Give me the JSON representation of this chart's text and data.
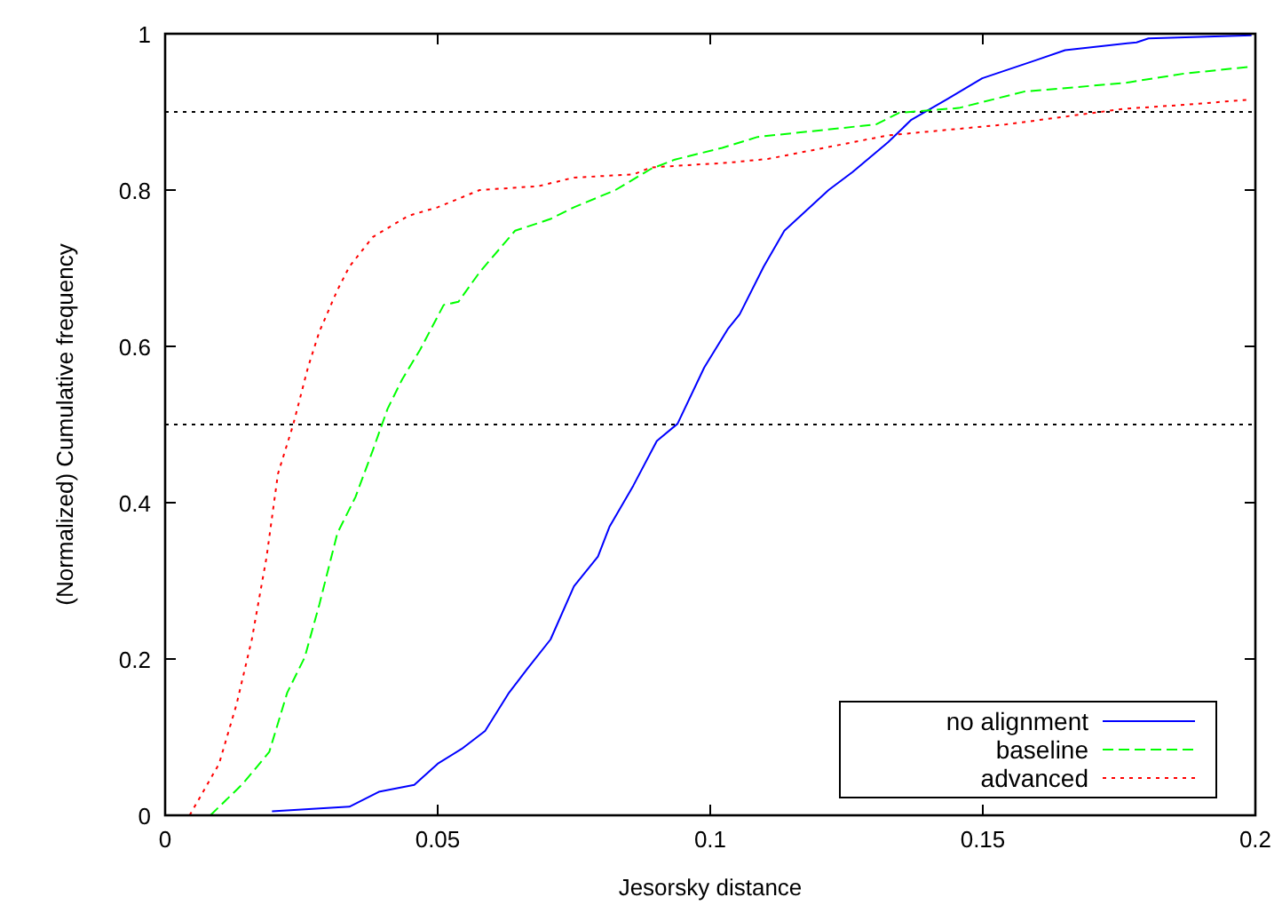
{
  "chart_data": {
    "type": "line",
    "xlabel": "Jesorsky distance",
    "ylabel": "(Normalized) Cumulative frequency",
    "xlim": [
      0,
      0.2
    ],
    "xticks": [
      0,
      0.05,
      0.1,
      0.15,
      0.2
    ],
    "ylim": [
      0,
      1
    ],
    "yticks": [
      0,
      0.2,
      0.4,
      0.6,
      0.8,
      1
    ],
    "grid": false,
    "legend": "bottom right",
    "marker": "none",
    "ref_lines": [
      {
        "axis": "y",
        "value": 0.5,
        "color": "#000000",
        "line_style": "dotted"
      },
      {
        "axis": "y",
        "value": 0.9,
        "color": "#000000",
        "line_style": "dotted"
      }
    ],
    "series": [
      {
        "name": "no alignment",
        "color": "#0000ff",
        "line_style": "solid",
        "x": [
          0.0196,
          0.0338,
          0.0392,
          0.0457,
          0.05,
          0.0544,
          0.0587,
          0.0631,
          0.0664,
          0.0707,
          0.075,
          0.0794,
          0.0815,
          0.0859,
          0.0902,
          0.094,
          0.0989,
          0.1033,
          0.1054,
          0.1098,
          0.1136,
          0.1217,
          0.1261,
          0.1326,
          0.1369,
          0.1434,
          0.1499,
          0.1597,
          0.1651,
          0.1782,
          0.1804,
          0.1993
        ],
        "values": [
          0.005,
          0.011,
          0.03,
          0.039,
          0.066,
          0.085,
          0.108,
          0.157,
          0.187,
          0.225,
          0.293,
          0.331,
          0.369,
          0.422,
          0.479,
          0.501,
          0.573,
          0.623,
          0.641,
          0.702,
          0.748,
          0.8,
          0.823,
          0.861,
          0.89,
          0.916,
          0.943,
          0.966,
          0.979,
          0.989,
          0.994,
          0.998
        ]
      },
      {
        "name": "baseline",
        "color": "#00ff00",
        "line_style": "dashed",
        "x": [
          0.0083,
          0.0142,
          0.0191,
          0.0224,
          0.0256,
          0.0283,
          0.0316,
          0.0349,
          0.0381,
          0.0408,
          0.0435,
          0.0468,
          0.0511,
          0.0538,
          0.0577,
          0.0642,
          0.0707,
          0.075,
          0.0826,
          0.0891,
          0.0935,
          0.1022,
          0.1087,
          0.1304,
          0.1347,
          0.1456,
          0.1576,
          0.176,
          0.1869,
          0.1993
        ],
        "values": [
          0,
          0.04,
          0.081,
          0.157,
          0.202,
          0.27,
          0.361,
          0.407,
          0.467,
          0.52,
          0.558,
          0.596,
          0.653,
          0.657,
          0.695,
          0.748,
          0.763,
          0.778,
          0.8,
          0.827,
          0.839,
          0.854,
          0.868,
          0.884,
          0.899,
          0.905,
          0.926,
          0.937,
          0.949,
          0.958
        ]
      },
      {
        "name": "advanced",
        "color": "#ff0000",
        "line_style": "dotted",
        "x": [
          0.0045,
          0.0099,
          0.0131,
          0.0159,
          0.0186,
          0.0207,
          0.0235,
          0.0262,
          0.0283,
          0.0316,
          0.0338,
          0.0381,
          0.0446,
          0.05,
          0.0577,
          0.0685,
          0.075,
          0.0859,
          0.0891,
          0.1033,
          0.1107,
          0.1326,
          0.1543,
          0.1759,
          0.1869,
          0.1993
        ],
        "values": [
          0,
          0.066,
          0.142,
          0.225,
          0.33,
          0.437,
          0.5,
          0.573,
          0.619,
          0.672,
          0.702,
          0.74,
          0.767,
          0.778,
          0.8,
          0.805,
          0.816,
          0.82,
          0.829,
          0.835,
          0.84,
          0.87,
          0.884,
          0.904,
          0.909,
          0.916
        ]
      }
    ]
  }
}
